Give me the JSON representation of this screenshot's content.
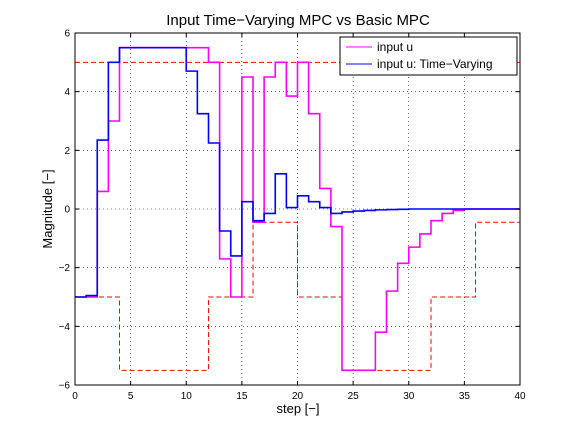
{
  "chart_data": {
    "type": "line",
    "title": "Input Time−Varying MPC vs Basic MPC",
    "xlabel": "step [−]",
    "ylabel": "Magnitude [−]",
    "xlim": [
      0,
      40
    ],
    "ylim": [
      -6,
      6
    ],
    "xticks": [
      "0",
      "5",
      "10",
      "15",
      "20",
      "25",
      "30",
      "35",
      "40"
    ],
    "yticks": [
      "−6",
      "−4",
      "−2",
      "0",
      "2",
      "4",
      "6"
    ],
    "grid": true,
    "legend_position": "top-right",
    "series": [
      {
        "name": "input u",
        "color": "#ff00ff",
        "style": "stairs",
        "x": [
          0,
          1,
          2,
          3,
          4,
          5,
          6,
          7,
          8,
          9,
          10,
          11,
          12,
          13,
          14,
          15,
          16,
          17,
          18,
          19,
          20,
          21,
          22,
          23,
          24,
          25,
          26,
          27,
          28,
          29,
          30,
          31,
          32,
          33,
          34,
          35,
          36,
          37,
          38,
          39
        ],
        "values": [
          -3.0,
          -3.0,
          0.6,
          3.0,
          5.5,
          5.5,
          5.5,
          5.5,
          5.5,
          5.5,
          5.5,
          5.5,
          5.0,
          -1.7,
          -3.0,
          4.5,
          -0.45,
          4.5,
          5.0,
          3.85,
          5.0,
          3.25,
          0.7,
          -0.6,
          -5.5,
          -5.5,
          -5.5,
          -4.2,
          -2.8,
          -1.85,
          -1.3,
          -0.85,
          -0.4,
          -0.15,
          -0.05,
          0.0,
          0.0,
          0.0,
          0.0,
          0.0
        ]
      },
      {
        "name": "input u: Time−Varying",
        "color": "#0000ff",
        "style": "stairs",
        "x": [
          0,
          1,
          2,
          3,
          4,
          5,
          6,
          7,
          8,
          9,
          10,
          11,
          12,
          13,
          14,
          15,
          16,
          17,
          18,
          19,
          20,
          21,
          22,
          23,
          24,
          25,
          26,
          27,
          28,
          29,
          30,
          31,
          32,
          33,
          34,
          35,
          36,
          37,
          38,
          39
        ],
        "values": [
          -3.0,
          -2.95,
          2.35,
          5.0,
          5.5,
          5.5,
          5.5,
          5.5,
          5.5,
          5.5,
          4.7,
          3.25,
          2.25,
          -0.75,
          -1.6,
          0.25,
          -0.4,
          -0.15,
          1.2,
          0.05,
          0.45,
          0.25,
          0.05,
          -0.15,
          -0.1,
          -0.07,
          -0.05,
          -0.03,
          -0.02,
          -0.01,
          0.0,
          0.0,
          0.0,
          0.0,
          0.0,
          0.0,
          0.0,
          0.0,
          0.0,
          0.0
        ]
      },
      {
        "name": "",
        "color": "#ff0000",
        "style": "dashed-stairs",
        "x": [
          0,
          4,
          12,
          16,
          20,
          24,
          28,
          32,
          36,
          40
        ],
        "values": [
          -3.0,
          -5.5,
          -3.0,
          -0.45,
          -3.0,
          -5.5,
          -5.5,
          -3.0,
          -0.45,
          -0.45
        ]
      },
      {
        "name": "",
        "color": "#ff0000",
        "style": "dashed-stairs",
        "x": [
          0,
          40
        ],
        "values": [
          5.0,
          5.0
        ]
      }
    ]
  }
}
